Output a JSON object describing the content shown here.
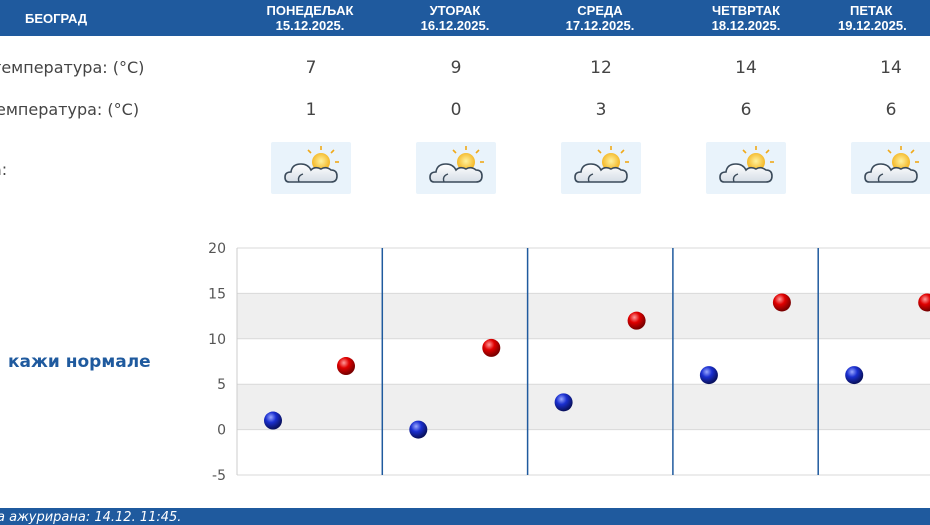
{
  "header": {
    "city": "БЕОГРАД",
    "days": [
      {
        "name": "ПОНЕДЕЉАК",
        "date": "15.12.2025."
      },
      {
        "name": "УТОРАК",
        "date": "16.12.2025."
      },
      {
        "name": "СРЕДА",
        "date": "17.12.2025."
      },
      {
        "name": "ЧЕТВРТАК",
        "date": "18.12.2025."
      },
      {
        "name": "ПЕТАК",
        "date": "19.12.2025."
      }
    ]
  },
  "rows": {
    "max_label": "температура: (°C)",
    "min_label": "емпература: (°C)",
    "icon_label": "а:",
    "max_values": [
      "7",
      "9",
      "12",
      "14",
      "14"
    ],
    "min_values": [
      "1",
      "0",
      "3",
      "6",
      "6"
    ],
    "icons": [
      "partly-cloudy-icon",
      "partly-cloudy-icon",
      "partly-cloudy-icon",
      "partly-cloudy-icon",
      "partly-cloudy-icon"
    ]
  },
  "normals_link": "кажи нормале",
  "footer": {
    "updated": "а ажурирана:  14.12. 11:45."
  },
  "colors": {
    "brand": "#1f5a9e",
    "max_marker": "#cc0000",
    "min_marker": "#1a2fb0"
  },
  "chart_data": {
    "type": "scatter",
    "ylim": [
      -5,
      20
    ],
    "yticks": [
      "20",
      "15",
      "10",
      "5",
      "0",
      "-5"
    ],
    "series": [
      {
        "name": "",
        "color": "#1a2fb0",
        "values": [
          1,
          0,
          3,
          6,
          6
        ]
      },
      {
        "name": "",
        "color": "#cc0000",
        "values": [
          7,
          9,
          12,
          14,
          14
        ]
      }
    ]
  }
}
